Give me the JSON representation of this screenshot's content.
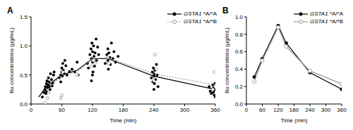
{
  "chart_data": [
    {
      "type": "scatter",
      "title": "A",
      "x_label": "Time (min)",
      "y_label": "Bu concentrations (μg/mL)",
      "xlim": [
        0,
        360
      ],
      "xticks": [
        0,
        60,
        120,
        180,
        240,
        300,
        360
      ],
      "ylim": [
        0,
        1.5
      ],
      "yticks": [
        {
          "value": 0,
          "label": "0.0"
        },
        {
          "value": 0.5,
          "label": "0.5"
        },
        {
          "value": 1,
          "label": "1.0"
        },
        {
          "value": 1.5,
          "label": "1.5"
        }
      ],
      "legend": "upper right",
      "series": [
        {
          "name": "GSTA1 *A/*A",
          "color": "#000000",
          "marker": "circle",
          "line_style": "solid",
          "points": {
            "x": [
              22,
              25,
              27,
              28,
              30,
              30,
              31,
              32,
              33,
              34,
              35,
              36,
              38,
              40,
              42,
              44,
              45,
              29,
              37,
              41,
              55,
              58,
              60,
              60,
              61,
              62,
              63,
              65,
              68,
              70,
              75,
              80,
              85,
              90,
              92,
              58,
              66,
              110,
              112,
              115,
              117,
              118,
              119,
              120,
              120,
              121,
              122,
              123,
              124,
              125,
              127,
              128,
              130,
              132,
              120,
              118,
              145,
              148,
              150,
              150,
              151,
              152,
              154,
              155,
              157,
              160,
              162,
              165,
              170,
              235,
              237,
              238,
              239,
              240,
              240,
              241,
              242,
              243,
              245,
              246,
              248,
              240,
              348,
              350,
              352,
              354,
              355,
              356,
              357,
              358,
              359,
              360,
              360
            ],
            "y": [
              0.12,
              0.2,
              0.25,
              0.3,
              0.22,
              0.35,
              0.4,
              0.28,
              0.33,
              0.45,
              0.38,
              0.3,
              0.52,
              0.42,
              0.36,
              0.5,
              0.55,
              0.18,
              0.25,
              0.31,
              0.45,
              0.5,
              0.62,
              0.55,
              0.48,
              0.7,
              0.58,
              0.52,
              0.66,
              0.5,
              0.56,
              0.6,
              0.55,
              0.72,
              0.5,
              0.38,
              0.75,
              0.7,
              0.62,
              0.85,
              0.95,
              0.78,
              1.05,
              0.9,
              0.72,
              0.55,
              1.0,
              0.82,
              0.65,
              0.88,
              1.12,
              0.75,
              0.98,
              0.85,
              0.5,
              0.4,
              0.7,
              0.85,
              0.95,
              0.75,
              0.6,
              0.88,
              0.8,
              0.68,
              1.05,
              0.78,
              0.9,
              0.72,
              0.82,
              0.45,
              0.55,
              0.38,
              0.62,
              0.48,
              0.52,
              0.35,
              0.58,
              0.42,
              0.68,
              0.5,
              0.3,
              0.25,
              0.3,
              0.22,
              0.18,
              0.26,
              0.33,
              0.2,
              0.28,
              0.15,
              0.24,
              0.36,
              0.12
            ]
          },
          "mean": {
            "x": [
              15,
              30,
              60,
              90,
              120,
              150,
              240,
              360
            ],
            "values": [
              0.12,
              0.3,
              0.5,
              0.58,
              0.78,
              0.78,
              0.48,
              0.25
            ]
          }
        },
        {
          "name": "GSTA1 *A/*B",
          "color": "#999999",
          "marker": "open_circle",
          "line_style": "dotted",
          "points": {
            "x": [
              28,
              32,
              35,
              58,
              60,
              62,
              90,
              118,
              122,
              125,
              150,
              152,
              240,
              242,
              245,
              358,
              360,
              355
            ],
            "y": [
              0.02,
              0.1,
              0.2,
              0.1,
              0.15,
              0.55,
              0.5,
              0.65,
              0.75,
              0.7,
              0.8,
              0.7,
              0.4,
              0.85,
              0.6,
              0.55,
              0.3,
              0.25
            ]
          },
          "mean": {
            "x": [
              30,
              60,
              90,
              120,
              150,
              240,
              360
            ],
            "values": [
              0.22,
              0.5,
              0.55,
              0.78,
              0.8,
              0.52,
              0.33
            ]
          }
        }
      ]
    },
    {
      "type": "line",
      "title": "B",
      "x_label": "Time (min)",
      "y_label": "Bu concentrations (μg/mL)",
      "xlim": [
        0,
        360
      ],
      "xticks": [
        0,
        60,
        120,
        180,
        240,
        300,
        360
      ],
      "ylim": [
        0,
        1
      ],
      "yticks": [
        {
          "value": 0,
          "label": "0.0"
        },
        {
          "value": 0.2,
          "label": "0.2"
        },
        {
          "value": 0.4,
          "label": "0.4"
        },
        {
          "value": 0.6,
          "label": "0.6"
        },
        {
          "value": 0.8,
          "label": "0.8"
        },
        {
          "value": 1,
          "label": "1.0"
        }
      ],
      "legend": "upper right",
      "series": [
        {
          "name": "GSTA1 *A/*A",
          "color": "#000000",
          "marker": "circle",
          "line_style": "solid",
          "x": [
            30,
            60,
            120,
            150,
            240,
            360
          ],
          "values": [
            0.31,
            0.52,
            0.9,
            0.7,
            0.36,
            0.17
          ]
        },
        {
          "name": "GSTA1 *A/*B",
          "color": "#999999",
          "marker": "open_circle",
          "line_style": "solid",
          "x": [
            30,
            60,
            120,
            150,
            240,
            360
          ],
          "values": [
            0.26,
            0.5,
            0.88,
            0.66,
            0.38,
            0.23
          ]
        }
      ]
    }
  ]
}
